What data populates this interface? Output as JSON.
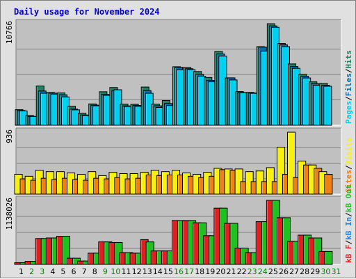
{
  "title": "Daily usage for November 2024",
  "colors": {
    "title": "#0000cc",
    "background": "#e0e0e0",
    "panel": "#c0c0c0",
    "pages": "#00d0f0",
    "files": "#0070b0",
    "hits": "#208060",
    "visits": "#f8f010",
    "sites": "#f08010",
    "kb_f": "#e02020",
    "kb_in": "#2080e0",
    "kb_out": "#20c020",
    "weekday": "#000000",
    "weekend": "#008000"
  },
  "legend": {
    "top": [
      "Pages",
      "/",
      "Files",
      "/",
      "Hits"
    ],
    "middle": [
      "Sites",
      "/",
      "Visits"
    ],
    "bottom": [
      "kB F",
      "/",
      "kB In",
      "/",
      "kB Out"
    ]
  },
  "chart_data": [
    {
      "type": "bar",
      "title": "Daily usage for November 2024",
      "max_label": "10766",
      "ymax": 10766,
      "categories": [
        "1",
        "2",
        "3",
        "4",
        "5",
        "6",
        "7",
        "8",
        "9",
        "10",
        "11",
        "12",
        "13",
        "14",
        "15",
        "16",
        "17",
        "18",
        "19",
        "20",
        "21",
        "22",
        "23",
        "24",
        "25",
        "26",
        "27",
        "28",
        "29",
        "30",
        "31"
      ],
      "weekend_days": [
        "2",
        "3",
        "9",
        "10",
        "16",
        "17",
        "23",
        "24",
        "30",
        "31"
      ],
      "series": [
        {
          "name": "Hits",
          "values": [
            1650,
            1030,
            4160,
            3470,
            3430,
            2020,
            1270,
            2260,
            3550,
            4000,
            2240,
            2220,
            4050,
            2240,
            2620,
            6200,
            6120,
            5690,
            5060,
            7820,
            5020,
            3570,
            3480,
            8330,
            10760,
            8660,
            6500,
            5410,
            4600,
            4430,
            0
          ]
        },
        {
          "name": "Files",
          "values": [
            1560,
            940,
            3630,
            3410,
            3230,
            1710,
            1090,
            2130,
            3260,
            3660,
            2050,
            2100,
            3670,
            2060,
            2300,
            6140,
            5990,
            5410,
            4750,
            7560,
            5020,
            3460,
            3420,
            8280,
            10530,
            8530,
            6220,
            5190,
            4410,
            4230,
            0
          ]
        },
        {
          "name": "Pages",
          "values": [
            1520,
            930,
            3390,
            3300,
            3000,
            1630,
            1020,
            2060,
            3170,
            3760,
            1990,
            2000,
            3390,
            1880,
            2090,
            5890,
            5900,
            5200,
            4600,
            7330,
            4800,
            3430,
            3380,
            7860,
            10380,
            8330,
            6030,
            5010,
            4240,
            4130,
            0
          ]
        }
      ]
    },
    {
      "type": "bar",
      "max_label": "936",
      "ymax": 936,
      "categories": [
        "1",
        "2",
        "3",
        "4",
        "5",
        "6",
        "7",
        "8",
        "9",
        "10",
        "11",
        "12",
        "13",
        "14",
        "15",
        "16",
        "17",
        "18",
        "19",
        "20",
        "21",
        "22",
        "23",
        "24",
        "25",
        "26",
        "27",
        "28",
        "29",
        "30",
        "31"
      ],
      "series": [
        {
          "name": "Visits",
          "values": [
            300,
            270,
            360,
            340,
            340,
            320,
            300,
            340,
            280,
            330,
            310,
            310,
            330,
            360,
            340,
            360,
            320,
            300,
            330,
            390,
            380,
            380,
            340,
            350,
            400,
            710,
            936,
            500,
            440,
            340,
            0
          ]
        },
        {
          "name": "Sites",
          "values": [
            230,
            210,
            240,
            220,
            240,
            220,
            210,
            240,
            230,
            250,
            230,
            240,
            290,
            280,
            290,
            290,
            270,
            250,
            270,
            370,
            360,
            190,
            190,
            190,
            190,
            300,
            250,
            440,
            390,
            300,
            0
          ]
        }
      ]
    },
    {
      "type": "bar",
      "max_label": "1138026",
      "ymax": 1138026,
      "categories": [
        "1",
        "2",
        "3",
        "4",
        "5",
        "6",
        "7",
        "8",
        "9",
        "10",
        "11",
        "12",
        "13",
        "14",
        "15",
        "16",
        "17",
        "18",
        "19",
        "20",
        "21",
        "22",
        "23",
        "24",
        "25",
        "26",
        "27",
        "28",
        "29",
        "30",
        "31"
      ],
      "series": [
        {
          "name": "kB F",
          "values": [
            30000,
            55000,
            460000,
            470000,
            500000,
            110000,
            60000,
            200000,
            400000,
            390000,
            210000,
            200000,
            440000,
            240000,
            240000,
            780000,
            780000,
            740000,
            510000,
            1000000,
            730000,
            290000,
            210000,
            760000,
            1138026,
            830000,
            410000,
            520000,
            470000,
            230000,
            0
          ]
        },
        {
          "name": "kB Out",
          "values": [
            30000,
            55000,
            460000,
            470000,
            500000,
            110000,
            60000,
            200000,
            400000,
            390000,
            210000,
            200000,
            400000,
            240000,
            240000,
            780000,
            780000,
            740000,
            510000,
            1000000,
            730000,
            290000,
            210000,
            760000,
            1138026,
            830000,
            410000,
            520000,
            470000,
            230000,
            0
          ]
        }
      ]
    }
  ]
}
